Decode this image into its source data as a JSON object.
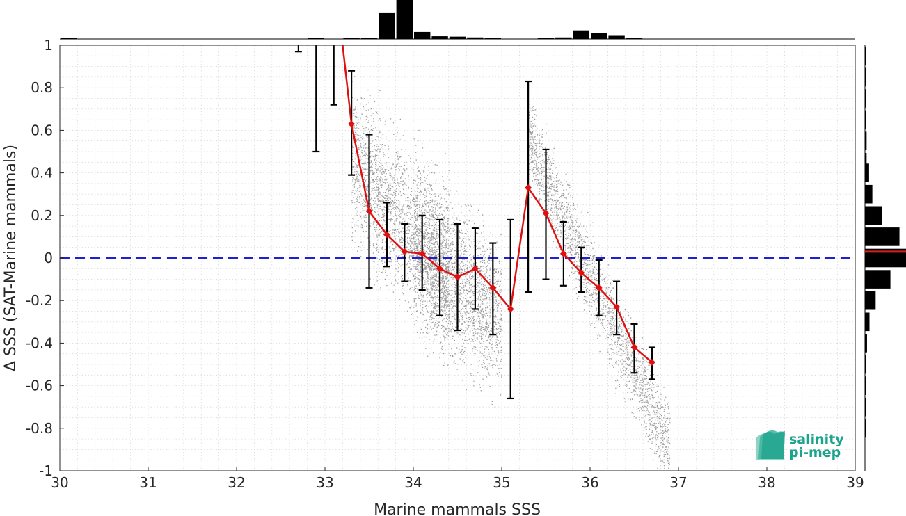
{
  "chart_data": {
    "type": "scatter",
    "title": "",
    "xlabel": "Marine mammals SSS",
    "ylabel": "Δ SSS (SAT-Marine mammals)",
    "xlim": [
      30,
      39
    ],
    "ylim": [
      -1,
      1
    ],
    "x_ticks": [
      "30",
      "31",
      "32",
      "33",
      "34",
      "35",
      "36",
      "37",
      "38",
      "39"
    ],
    "y_ticks": [
      "1",
      "0.8",
      "0.6",
      "0.4",
      "0.2",
      "0",
      "-0.2",
      "-0.4",
      "-0.6",
      "-0.8",
      "-1"
    ],
    "grid": true,
    "reference_line": {
      "y": 0,
      "style": "dashed",
      "color": "#1f1fd6"
    },
    "series": [
      {
        "type": "line",
        "color": "#e01010",
        "marker": "diamond",
        "x": [
          33.3,
          33.5,
          33.7,
          33.9,
          34.1,
          34.3,
          34.5,
          34.7,
          34.9,
          35.1,
          35.3,
          35.5,
          35.7,
          35.9,
          36.1,
          36.3,
          36.5,
          36.7
        ],
        "y": [
          0.63,
          0.22,
          0.11,
          0.03,
          0.02,
          -0.05,
          -0.09,
          -0.05,
          -0.14,
          -0.24,
          0.33,
          0.21,
          0.02,
          -0.07,
          -0.14,
          -0.23,
          -0.42,
          -0.49
        ],
        "line_extends_above": [
          33.2,
          1.0
        ]
      },
      {
        "type": "errorbar",
        "color": "#000000",
        "x": [
          32.7,
          32.9,
          33.1,
          33.3,
          33.5,
          33.7,
          33.9,
          34.1,
          34.3,
          34.5,
          34.7,
          34.9,
          35.1,
          35.3,
          35.5,
          35.7,
          35.9,
          36.1,
          36.3,
          36.5,
          36.7
        ],
        "low": [
          0.97,
          0.5,
          0.72,
          0.39,
          -0.14,
          -0.04,
          -0.11,
          -0.15,
          -0.27,
          -0.34,
          -0.24,
          -0.36,
          -0.66,
          -0.16,
          -0.1,
          -0.13,
          -0.16,
          -0.27,
          -0.36,
          -0.54,
          -0.57
        ],
        "high": [
          1.0,
          1.0,
          1.0,
          0.88,
          0.58,
          0.26,
          0.16,
          0.2,
          0.18,
          0.16,
          0.14,
          0.07,
          0.18,
          0.83,
          0.51,
          0.17,
          0.05,
          -0.01,
          -0.11,
          -0.31,
          -0.42
        ]
      },
      {
        "type": "scatter_cloud",
        "color": "#8c8c8c",
        "clusters": [
          {
            "x_range": [
              33.3,
              34.4
            ],
            "center_y_at_start": 0.45,
            "slope": -0.5,
            "spread": 0.17
          },
          {
            "x_range": [
              34.0,
              35.0
            ],
            "center_y_at_start": 0.1,
            "slope": -0.4,
            "spread": 0.18
          },
          {
            "x_range": [
              35.3,
              36.9
            ],
            "center_y_at_start": 0.55,
            "slope": -0.9,
            "spread": 0.1
          }
        ]
      }
    ],
    "hist_top": {
      "bin_centers": [
        30.1,
        32.9,
        33.3,
        33.5,
        33.7,
        33.9,
        34.1,
        34.3,
        34.5,
        34.7,
        34.9,
        35.5,
        35.7,
        35.9,
        36.1,
        36.3,
        36.5
      ],
      "counts": [
        0.02,
        0.02,
        0.02,
        0.02,
        0.68,
        1.0,
        0.18,
        0.07,
        0.06,
        0.04,
        0.03,
        0.02,
        0.04,
        0.22,
        0.15,
        0.08,
        0.03
      ]
    },
    "hist_right": {
      "bin_centers": [
        0.95,
        0.85,
        0.75,
        0.65,
        0.55,
        0.45,
        0.4,
        0.3,
        0.2,
        0.1,
        0.0,
        -0.1,
        -0.2,
        -0.3,
        -0.4,
        -0.5,
        -0.6,
        -0.7,
        -0.8
      ],
      "counts": [
        0.02,
        0.03,
        0.02,
        0.02,
        0.04,
        0.04,
        0.1,
        0.18,
        0.42,
        0.84,
        1.0,
        0.62,
        0.26,
        0.11,
        0.05,
        0.03,
        0.02,
        0.02,
        0.02
      ],
      "mean_line_y": 0.03,
      "mean_line_color": "#d62020"
    }
  },
  "logo": {
    "line1": "salinity",
    "line2": "pi-mep",
    "color": "#1ba38c"
  }
}
